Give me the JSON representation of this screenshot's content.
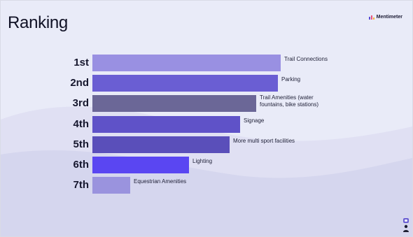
{
  "slide": {
    "title": "Ranking",
    "logo_text": "Mentimeter",
    "accent": "#5b4fd6",
    "background": "#e9ebf8"
  },
  "chart_data": {
    "type": "bar",
    "orientation": "horizontal",
    "categories": [
      "1st",
      "2nd",
      "3rd",
      "4th",
      "5th",
      "6th",
      "7th"
    ],
    "series": [
      {
        "labels": [
          "Trail Connections",
          "Parking",
          "Trail Amenities (water fountains, bike stations)",
          "Signage",
          "More multi sport facilities",
          "Lighting",
          "Equestrian Amenities"
        ],
        "values": [
          7,
          6.9,
          6.1,
          5.5,
          5.1,
          3.6,
          1.4
        ],
        "colors": [
          "#9990e2",
          "#6a5ed3",
          "#6b6797",
          "#5f52c8",
          "#5a4fba",
          "#5a46f2",
          "#9a93de"
        ]
      }
    ],
    "title": "Ranking",
    "xlabel": "",
    "ylabel": "",
    "xlim": [
      0,
      7
    ],
    "grid": false
  },
  "icons": {
    "logo": "mentimeter-bars-icon",
    "presenter": "presenter-avatar-icon"
  }
}
